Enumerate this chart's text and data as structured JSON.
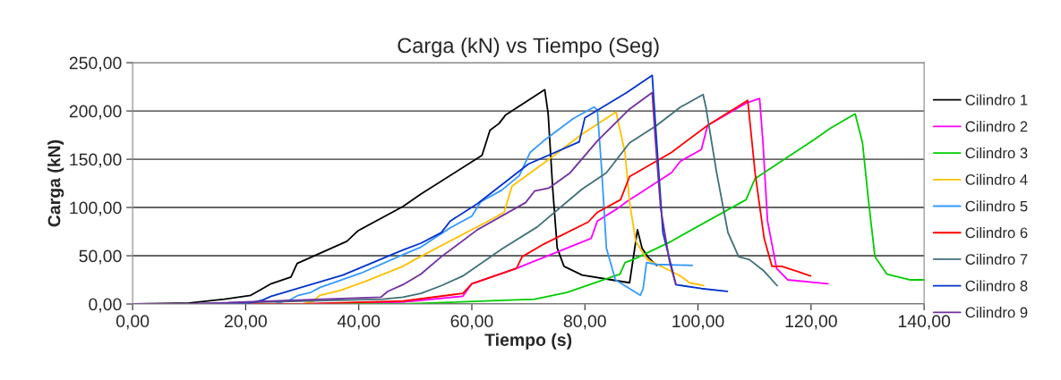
{
  "chart_data": {
    "type": "line",
    "title": "Carga (kN) vs Tiempo (Seg)",
    "xlabel": "Tiempo (s)",
    "ylabel": "Carga (kN)",
    "xlim": [
      0,
      140
    ],
    "ylim": [
      0,
      250
    ],
    "xticks": [
      {
        "value": 0,
        "label": "0,00"
      },
      {
        "value": 20,
        "label": "20,00"
      },
      {
        "value": 40,
        "label": "40,00"
      },
      {
        "value": 60,
        "label": "60,00"
      },
      {
        "value": 80,
        "label": "80,00"
      },
      {
        "value": 100,
        "label": "100,00"
      },
      {
        "value": 120,
        "label": "120,00"
      },
      {
        "value": 140,
        "label": "140,00"
      }
    ],
    "yticks": [
      {
        "value": 0,
        "label": "0,00"
      },
      {
        "value": 50,
        "label": "50,00"
      },
      {
        "value": 100,
        "label": "100,00"
      },
      {
        "value": 150,
        "label": "150,00"
      },
      {
        "value": 200,
        "label": "200,00"
      },
      {
        "value": 250,
        "label": "250,00"
      }
    ],
    "grid": "y",
    "legend": "right",
    "marker": "none",
    "line_style": "solid",
    "series": [
      {
        "name": "Cilindro 1",
        "color": "#000000",
        "x": [
          0,
          10,
          16.2,
          20.9,
          23,
          24.5,
          28,
          29.1,
          37.9,
          39.9,
          47.8,
          51,
          61.8,
          63.2,
          64.8,
          66,
          72.9,
          73.5,
          74.3,
          75.1,
          76.3,
          79.5,
          84.7,
          87.9,
          89.3,
          90.1,
          91.1,
          92.7
        ],
        "values": [
          0,
          1,
          5,
          9,
          16,
          21,
          28,
          42,
          65,
          76,
          101,
          114,
          154,
          180,
          187,
          196,
          222,
          197,
          120,
          58,
          39,
          30,
          25,
          22,
          77,
          58,
          49,
          40
        ]
      },
      {
        "name": "Cilindro 2",
        "color": "#ff00ff",
        "x": [
          0,
          30,
          47.8,
          58.4,
          60,
          67.9,
          81.1,
          82.2,
          85.8,
          87.4,
          95.3,
          96.9,
          100.6,
          101.7,
          108.5,
          110.9,
          111.5,
          112.3,
          113.9,
          115.9,
          123
        ],
        "values": [
          0,
          0,
          2,
          8,
          21,
          37,
          68,
          86,
          99,
          106,
          136,
          148,
          160,
          185,
          208,
          213,
          167,
          86,
          37,
          25,
          21
        ]
      },
      {
        "name": "Cilindro 3",
        "color": "#00cc00",
        "x": [
          0,
          47.8,
          71.1,
          76.8,
          84.7,
          86.2,
          87.1,
          88.5,
          95.3,
          98,
          108.5,
          110.1,
          120.7,
          123.4,
          127.8,
          129.1,
          130.2,
          131.3,
          133.4,
          137.6,
          140
        ],
        "values": [
          0,
          0,
          5,
          12,
          28,
          31,
          43,
          46,
          65,
          74,
          108,
          130,
          171,
          182,
          197,
          167,
          105,
          49,
          31,
          25,
          25
        ]
      },
      {
        "name": "Cilindro 4",
        "color": "#ffc000",
        "x": [
          0,
          30,
          32,
          33.1,
          36.7,
          41,
          47.8,
          49.9,
          62.6,
          65.7,
          67.1,
          73.2,
          79.5,
          85.5,
          87.1,
          87.9,
          89,
          91,
          94.2,
          96.9,
          98.5,
          101
        ],
        "values": [
          0,
          0,
          3,
          9,
          14,
          23,
          39,
          46,
          85,
          95,
          122,
          148,
          176,
          199,
          157,
          105,
          65,
          46,
          37,
          29,
          22,
          19
        ]
      },
      {
        "name": "Cilindro 5",
        "color": "#3399ff",
        "x": [
          0,
          25,
          27.7,
          29.3,
          31.5,
          33.1,
          40.4,
          47.8,
          51,
          56.2,
          60,
          61.6,
          65.3,
          68.4,
          70.3,
          72.7,
          77.9,
          81.6,
          82.2,
          83,
          83.8,
          85.4,
          89.8,
          90.3,
          90.9,
          92.7,
          99
        ],
        "values": [
          0,
          0,
          4,
          9,
          12,
          17,
          32,
          51,
          59,
          79,
          91,
          106,
          118,
          133,
          157,
          169,
          192,
          204,
          201,
          136,
          58,
          25,
          9,
          16,
          43,
          41,
          40
        ]
      },
      {
        "name": "Cilindro 6",
        "color": "#ff0000",
        "x": [
          0,
          30,
          47.8,
          58.4,
          60,
          67.9,
          68.9,
          72.7,
          80.6,
          82.2,
          86.3,
          87.9,
          95.3,
          101.7,
          108.8,
          110.1,
          111.7,
          113.1,
          114.8,
          117.5,
          119.9
        ],
        "values": [
          0,
          0,
          3,
          11,
          21,
          37,
          49,
          62,
          85,
          95,
          108,
          132,
          157,
          185,
          211,
          136,
          68,
          39,
          39,
          34,
          29
        ]
      },
      {
        "name": "Cilindro 7",
        "color": "#3f6f78",
        "x": [
          0,
          10,
          44.2,
          47.8,
          51,
          54.6,
          58.4,
          65.3,
          71.6,
          79.5,
          83.8,
          87.9,
          92.7,
          96.9,
          100.9,
          101.4,
          103.3,
          105.3,
          107.2,
          109.1,
          111.7,
          114
        ],
        "values": [
          0,
          0,
          5,
          7,
          11,
          19,
          29,
          57,
          80,
          119,
          136,
          167,
          185,
          204,
          217,
          204,
          136,
          74,
          49,
          46,
          34,
          19
        ]
      },
      {
        "name": "Cilindro 8",
        "color": "#0033cc",
        "x": [
          0,
          20,
          23,
          24.5,
          37.2,
          47.8,
          51,
          54.6,
          56.2,
          61,
          70,
          79,
          80,
          87.4,
          91.9,
          92.7,
          93.8,
          96.1,
          100.6,
          105.2
        ],
        "values": [
          0,
          0,
          4,
          8,
          30,
          56,
          63,
          74,
          86,
          104,
          145,
          168,
          193,
          219,
          237,
          167,
          74,
          20,
          16,
          13
        ]
      },
      {
        "name": "Cilindro 9",
        "color": "#7030a0",
        "x": [
          0,
          10,
          43.9,
          45.1,
          47.8,
          51,
          54.6,
          61,
          69.5,
          71.1,
          73.6,
          77.4,
          82.2,
          87.9,
          91.9,
          92.5,
          93.4,
          95,
          96.1
        ],
        "values": [
          0,
          0,
          7,
          13,
          20,
          31,
          49,
          77,
          105,
          117,
          120,
          136,
          169,
          202,
          219,
          167,
          99,
          43,
          20
        ]
      }
    ]
  }
}
